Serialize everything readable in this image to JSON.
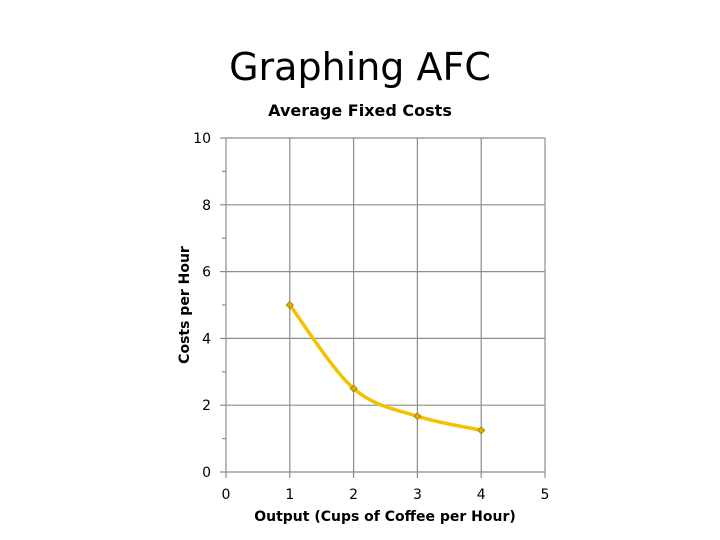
{
  "slide": {
    "title": "Graphing AFC"
  },
  "chart_data": {
    "type": "line",
    "title": "Average Fixed Costs",
    "xlabel": "Output (Cups of Coffee per Hour)",
    "ylabel": "Costs per Hour",
    "x_ticks": [
      0,
      1,
      2,
      3,
      4,
      5
    ],
    "y_ticks": [
      0,
      2,
      4,
      6,
      8,
      10
    ],
    "xlim": [
      0,
      5
    ],
    "ylim": [
      0,
      10
    ],
    "grid": true,
    "smooth": true,
    "line_color": "#f2c200",
    "marker_color": "#e0b000",
    "series": [
      {
        "x": [
          1,
          2,
          3,
          4
        ],
        "values": [
          5,
          2.5,
          1.67,
          1.25
        ]
      }
    ]
  }
}
